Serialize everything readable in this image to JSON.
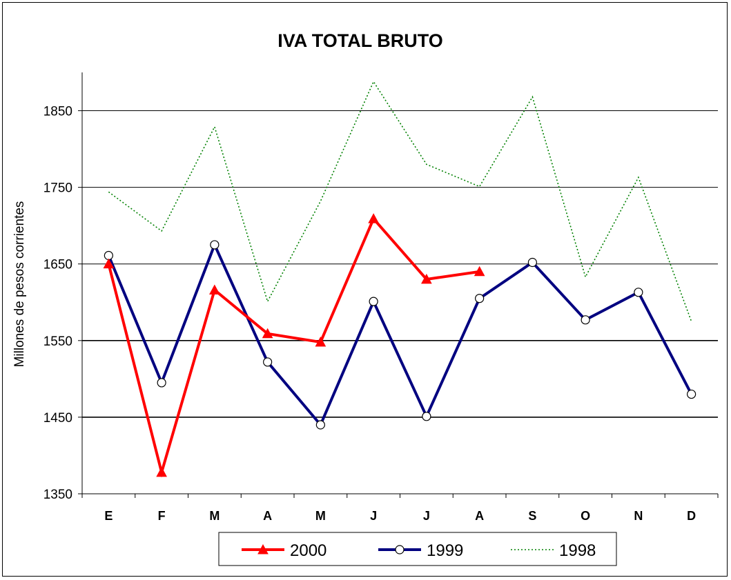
{
  "chart_data": {
    "type": "line",
    "title": "IVA TOTAL BRUTO",
    "xlabel": "",
    "ylabel": "Millones de pesos corrientes",
    "categories": [
      "E",
      "F",
      "M",
      "A",
      "M",
      "J",
      "J",
      "A",
      "S",
      "O",
      "N",
      "D"
    ],
    "ylim": [
      1350,
      1900
    ],
    "yticks": [
      1350,
      1450,
      1550,
      1650,
      1750,
      1850
    ],
    "grid": true,
    "legend_position": "bottom",
    "series": [
      {
        "name": "2000",
        "color": "#ff0000",
        "marker": "triangle",
        "style": "solid",
        "values": [
          1650,
          1378,
          1616,
          1559,
          1548,
          1709,
          1630,
          1640,
          null,
          null,
          null,
          null
        ]
      },
      {
        "name": "1999",
        "color": "#000080",
        "marker": "circle",
        "style": "solid",
        "values": [
          1661,
          1495,
          1675,
          1522,
          1440,
          1601,
          1451,
          1605,
          1652,
          1577,
          1613,
          1480
        ]
      },
      {
        "name": "1998",
        "color": "#008000",
        "marker": "none",
        "style": "dotted",
        "values": [
          1744,
          1693,
          1829,
          1601,
          1732,
          1888,
          1780,
          1751,
          1868,
          1633,
          1763,
          1575
        ]
      }
    ]
  }
}
